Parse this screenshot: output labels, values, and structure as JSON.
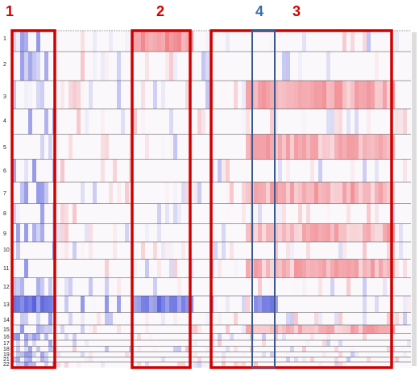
{
  "box_labels": [
    "1",
    "2",
    "4",
    "3"
  ],
  "chromosomes": [
    "1",
    "2",
    "3",
    "4",
    "5",
    "6",
    "7",
    "8",
    "9",
    "10",
    "11",
    "12",
    "13",
    "14",
    "15",
    "16",
    "17",
    "18",
    "19",
    "21",
    "22"
  ]
}
